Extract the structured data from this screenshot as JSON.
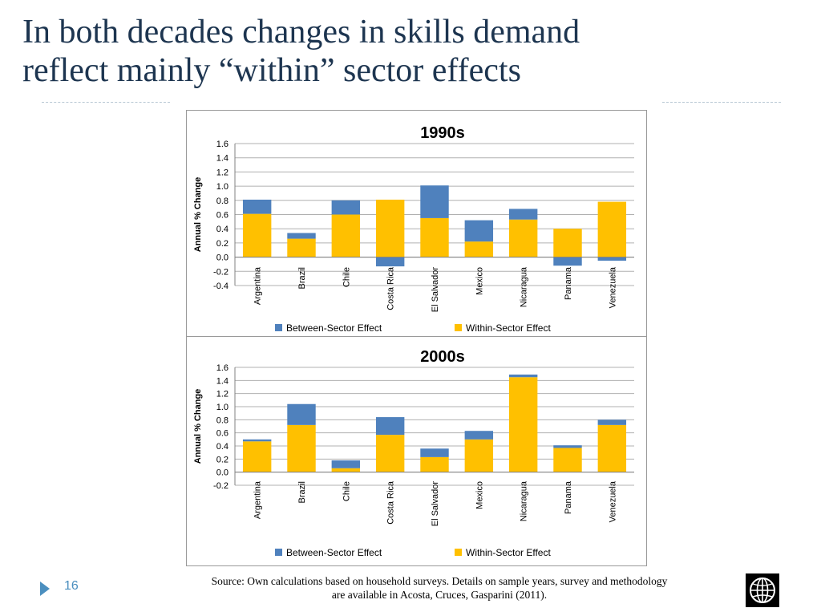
{
  "slide": {
    "title_line1": "In both decades changes in skills demand",
    "title_line2": "reflect mainly “within” sector effects",
    "page_number": "16",
    "source_line1": "Source: Own calculations based on household surveys. Details on sample years, survey and methodology",
    "source_line2": "are available in Acosta, Cruces, Gasparini (2011).",
    "logo_icon": "globe-icon"
  },
  "colors": {
    "between": "#4f81bd",
    "within": "#ffc000",
    "title_text": "#1d3550",
    "accent": "#4b8fbf"
  },
  "chart_data": [
    {
      "type": "bar",
      "stacked": true,
      "title": "1990s",
      "ylabel": "Annual % Change",
      "ylim": [
        -0.4,
        1.6
      ],
      "yticks": [
        "1.6",
        "1.4",
        "1.2",
        "1.0",
        "0.8",
        "0.6",
        "0.4",
        "0.2",
        "0.0",
        "-0.2",
        "-0.4"
      ],
      "grid": true,
      "legend_position": "bottom",
      "categories": [
        "Argentina",
        "Brazil",
        "Chile",
        "Costa Rica",
        "El Salvador",
        "Mexico",
        "Nicaragua",
        "Panama",
        "Venezuela"
      ],
      "series": [
        {
          "name": "Between-Sector Effect",
          "values": [
            0.2,
            0.08,
            0.2,
            -0.13,
            0.46,
            0.3,
            0.15,
            -0.12,
            -0.05
          ]
        },
        {
          "name": "Within-Sector Effect",
          "values": [
            0.61,
            0.26,
            0.6,
            0.81,
            0.55,
            0.22,
            0.53,
            0.4,
            0.78
          ]
        }
      ]
    },
    {
      "type": "bar",
      "stacked": true,
      "title": "2000s",
      "ylabel": "Annual % Change",
      "ylim": [
        -0.2,
        1.6
      ],
      "yticks": [
        "1.6",
        "1.4",
        "1.2",
        "1.0",
        "0.8",
        "0.6",
        "0.4",
        "0.2",
        "0.0",
        "-0.2"
      ],
      "grid": true,
      "legend_position": "bottom",
      "categories": [
        "Argentina",
        "Brazil",
        "Chile",
        "Costa Rica",
        "El Salvador",
        "Mexico",
        "Nicaragua",
        "Panama",
        "Venezuela"
      ],
      "series": [
        {
          "name": "Between-Sector Effect",
          "values": [
            0.03,
            0.32,
            0.12,
            0.27,
            0.13,
            0.13,
            0.04,
            0.04,
            0.08
          ]
        },
        {
          "name": "Within-Sector Effect",
          "values": [
            0.47,
            0.72,
            0.06,
            0.57,
            0.23,
            0.5,
            1.45,
            0.37,
            0.72
          ]
        }
      ]
    }
  ]
}
